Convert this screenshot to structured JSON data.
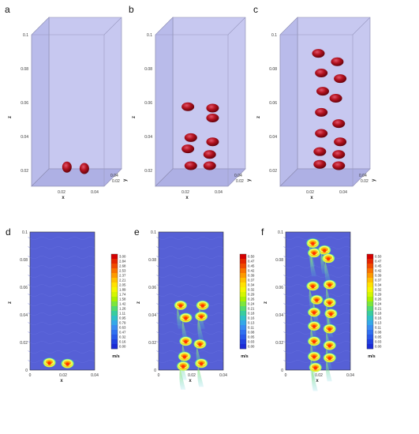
{
  "figure": {
    "top_panels": [
      {
        "label": "a",
        "z_ticks": [
          "0.1",
          "0.08",
          "0.06",
          "0.04",
          "0.02"
        ],
        "x_ticks": [
          "0.02",
          "0.04"
        ],
        "y_ticks": [
          "0.04",
          "0.02"
        ],
        "xlabel": "x",
        "zlabel": "z",
        "ylabel": "y",
        "bubbles": [
          [
            0.02,
            0.008
          ],
          [
            0.032,
            0.007
          ]
        ]
      },
      {
        "label": "b",
        "z_ticks": [
          "0.1",
          "0.08",
          "0.06",
          "0.04",
          "0.02"
        ],
        "x_ticks": [
          "0.02",
          "0.04"
        ],
        "y_ticks": [
          "0.04",
          "0.02"
        ],
        "xlabel": "x",
        "zlabel": "z",
        "ylabel": "y",
        "bubbles": [
          [
            0.018,
            0.051
          ],
          [
            0.035,
            0.05
          ],
          [
            0.035,
            0.043
          ],
          [
            0.02,
            0.029
          ],
          [
            0.035,
            0.026
          ],
          [
            0.018,
            0.021
          ],
          [
            0.033,
            0.017
          ],
          [
            0.02,
            0.009
          ],
          [
            0.033,
            0.009
          ]
        ]
      },
      {
        "label": "c",
        "z_ticks": [
          "0.1",
          "0.08",
          "0.06",
          "0.04",
          "0.02"
        ],
        "x_ticks": [
          "0.02",
          "0.04"
        ],
        "y_ticks": [
          "0.04",
          "0.02"
        ],
        "xlabel": "x",
        "zlabel": "z",
        "ylabel": "y",
        "bubbles": [
          [
            0.022,
            0.089
          ],
          [
            0.035,
            0.083
          ],
          [
            0.024,
            0.075
          ],
          [
            0.037,
            0.071
          ],
          [
            0.025,
            0.062
          ],
          [
            0.034,
            0.057
          ],
          [
            0.024,
            0.047
          ],
          [
            0.036,
            0.039
          ],
          [
            0.024,
            0.032
          ],
          [
            0.037,
            0.026
          ],
          [
            0.023,
            0.019
          ],
          [
            0.036,
            0.017
          ],
          [
            0.023,
            0.01
          ],
          [
            0.036,
            0.009
          ]
        ]
      }
    ],
    "bottom_panels": [
      {
        "label": "d",
        "z_ticks": [
          "0.1",
          "0.08",
          "0.06",
          "0.04",
          "0.02",
          "0"
        ],
        "x_ticks": [
          "0",
          "0.02",
          "0.04"
        ],
        "xlabel": "x",
        "zlabel": "z",
        "colorbar": {
          "unit": "m/s",
          "ticks": [
            "3.00",
            "2.84",
            "2.68",
            "2.53",
            "2.37",
            "2.21",
            "2.05",
            "1.89",
            "1.74",
            "1.58",
            "1.42",
            "1.26",
            "1.11",
            "0.95",
            "0.79",
            "0.63",
            "0.47",
            "0.32",
            "0.16",
            "0.00"
          ]
        },
        "bubbles": [
          [
            0.015,
            0.0055
          ],
          [
            0.029,
            0.0048
          ]
        ]
      },
      {
        "label": "e",
        "z_ticks": [
          "0.1",
          "0.08",
          "0.06",
          "0.04",
          "0.02",
          "0"
        ],
        "x_ticks": [
          "0",
          "0.02",
          "0.04"
        ],
        "xlabel": "x",
        "zlabel": "z",
        "colorbar": {
          "unit": "m/s",
          "ticks": [
            "0.50",
            "0.47",
            "0.45",
            "0.42",
            "0.39",
            "0.37",
            "0.34",
            "0.32",
            "0.29",
            "0.26",
            "0.24",
            "0.21",
            "0.18",
            "0.16",
            "0.13",
            "0.11",
            "0.08",
            "0.05",
            "0.03",
            "0.00"
          ]
        },
        "bubbles": [
          [
            0.017,
            0.047
          ],
          [
            0.034,
            0.047
          ],
          [
            0.033,
            0.039
          ],
          [
            0.021,
            0.038
          ],
          [
            0.021,
            0.021
          ],
          [
            0.032,
            0.019
          ],
          [
            0.02,
            0.01
          ],
          [
            0.033,
            0.005
          ],
          [
            0.019,
            0.003
          ]
        ]
      },
      {
        "label": "f",
        "z_ticks": [
          "0.1",
          "0.08",
          "0.06",
          "0.04",
          "0.02",
          "0"
        ],
        "x_ticks": [
          "0",
          "0.02",
          "0.04"
        ],
        "xlabel": "x",
        "zlabel": "z",
        "colorbar": {
          "unit": "m/s",
          "ticks": [
            "0.50",
            "0.47",
            "0.45",
            "0.42",
            "0.39",
            "0.37",
            "0.34",
            "0.32",
            "0.29",
            "0.26",
            "0.24",
            "0.21",
            "0.18",
            "0.16",
            "0.13",
            "0.11",
            "0.08",
            "0.05",
            "0.03",
            "0.00"
          ]
        },
        "bubbles": [
          [
            0.021,
            0.092
          ],
          [
            0.03,
            0.087
          ],
          [
            0.022,
            0.085
          ],
          [
            0.033,
            0.081
          ],
          [
            0.034,
            0.062
          ],
          [
            0.021,
            0.061
          ],
          [
            0.024,
            0.051
          ],
          [
            0.034,
            0.049
          ],
          [
            0.022,
            0.042
          ],
          [
            0.035,
            0.041
          ],
          [
            0.022,
            0.032
          ],
          [
            0.034,
            0.03
          ],
          [
            0.022,
            0.021
          ],
          [
            0.034,
            0.018
          ],
          [
            0.022,
            0.01
          ],
          [
            0.034,
            0.009
          ],
          [
            0.023,
            0.002
          ]
        ]
      }
    ]
  }
}
